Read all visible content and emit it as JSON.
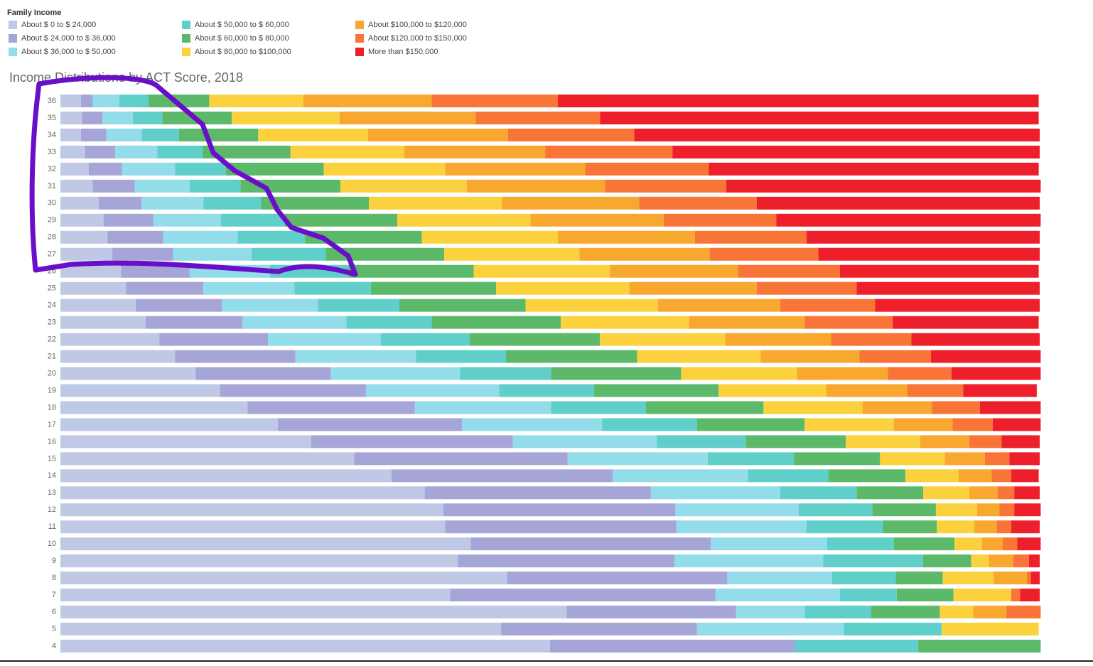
{
  "chart_data": {
    "type": "stacked-bar-horizontal",
    "title": "Income Distributions by ACT Score, 2018",
    "legend_title": "Family Income",
    "xlim": [
      0,
      100
    ],
    "categories": [
      "36",
      "35",
      "34",
      "33",
      "32",
      "31",
      "30",
      "29",
      "28",
      "27",
      "26",
      "25",
      "24",
      "23",
      "22",
      "21",
      "20",
      "19",
      "18",
      "17",
      "16",
      "15",
      "14",
      "13",
      "12",
      "11",
      "10",
      "9",
      "8",
      "7",
      "6",
      "5",
      "4"
    ],
    "series": [
      {
        "name": "About $ 0 to $ 24,000",
        "color": "#bfc9e6",
        "values": [
          2.1,
          2.2,
          2.1,
          2.5,
          2.9,
          3.3,
          3.9,
          4.4,
          4.8,
          5.3,
          6.2,
          6.7,
          7.7,
          8.7,
          10.1,
          11.7,
          13.8,
          16.3,
          19.1,
          22.2,
          25.6,
          30.0,
          33.8,
          37.2,
          39.1,
          39.3,
          41.9,
          40.6,
          45.6,
          39.8,
          51.7,
          45.0,
          50.0
        ]
      },
      {
        "name": "About $ 24,000 to $ 36,000",
        "color": "#a6a5d7",
        "values": [
          1.2,
          2.1,
          2.6,
          3.1,
          3.4,
          4.3,
          4.4,
          5.1,
          5.7,
          6.2,
          7.0,
          7.9,
          8.8,
          9.9,
          11.1,
          12.3,
          13.8,
          14.9,
          17.1,
          18.8,
          20.6,
          21.8,
          22.6,
          23.1,
          23.7,
          23.6,
          24.5,
          22.1,
          22.5,
          27.1,
          17.3,
          20.0,
          25.0
        ]
      },
      {
        "name": "About $ 36,000 to $ 50,000",
        "color": "#93dcea",
        "values": [
          2.7,
          3.1,
          3.6,
          4.3,
          5.4,
          5.6,
          6.3,
          6.9,
          7.6,
          8.0,
          8.2,
          9.3,
          9.8,
          10.6,
          11.5,
          12.3,
          13.2,
          13.6,
          13.9,
          14.3,
          14.7,
          14.3,
          13.8,
          13.2,
          12.6,
          13.3,
          11.9,
          15.2,
          10.7,
          12.7,
          7.0,
          15.0,
          0
        ]
      },
      {
        "name": "About $ 50,000 to $ 60,000",
        "color": "#60cfc9",
        "values": [
          3.0,
          3.0,
          3.8,
          4.6,
          5.2,
          5.2,
          5.9,
          6.5,
          6.9,
          7.6,
          8.0,
          7.8,
          8.3,
          8.7,
          9.1,
          9.2,
          9.3,
          9.7,
          9.7,
          9.7,
          9.1,
          8.8,
          8.2,
          7.8,
          7.5,
          7.8,
          6.8,
          10.2,
          6.5,
          5.8,
          6.8,
          10.0,
          12.6
        ]
      },
      {
        "name": "About $ 60,000 to $ 80,000",
        "color": "#5db96a",
        "values": [
          6.2,
          7.1,
          8.1,
          9.0,
          10.0,
          10.2,
          11.0,
          11.5,
          11.9,
          12.1,
          12.8,
          12.8,
          12.9,
          13.2,
          13.3,
          13.4,
          13.3,
          12.7,
          12.0,
          11.0,
          10.2,
          8.8,
          7.9,
          6.8,
          6.5,
          5.5,
          6.2,
          4.9,
          4.8,
          5.8,
          7.0,
          0,
          12.5
        ]
      },
      {
        "name": "About $ 80,000 to $100,000",
        "color": "#fbd23d",
        "values": [
          9.6,
          11.0,
          11.2,
          11.6,
          12.4,
          12.9,
          13.6,
          13.6,
          13.9,
          13.8,
          13.9,
          13.6,
          13.5,
          13.1,
          12.8,
          12.6,
          11.8,
          11.0,
          10.1,
          9.1,
          7.6,
          6.6,
          5.4,
          4.7,
          4.2,
          3.8,
          2.8,
          1.8,
          5.2,
          5.9,
          3.4,
          9.9,
          0
        ]
      },
      {
        "name": "About $100,000 to $120,000",
        "color": "#f8a82f",
        "values": [
          13.1,
          13.9,
          14.3,
          14.4,
          14.3,
          14.1,
          14.0,
          13.6,
          14.0,
          13.3,
          13.1,
          13.0,
          12.5,
          11.8,
          10.8,
          10.1,
          9.3,
          8.3,
          7.1,
          6.0,
          5.0,
          4.1,
          3.4,
          2.9,
          2.3,
          2.3,
          2.1,
          2.5,
          3.4,
          0,
          3.4,
          0,
          0
        ]
      },
      {
        "name": "About $120,000 to $150,000",
        "color": "#f97437",
        "values": [
          12.9,
          12.7,
          12.9,
          13.0,
          12.6,
          12.4,
          12.0,
          11.5,
          11.4,
          11.1,
          10.4,
          10.2,
          9.7,
          9.0,
          8.2,
          7.3,
          6.5,
          5.7,
          4.9,
          4.1,
          3.3,
          2.5,
          2.0,
          1.7,
          1.5,
          1.5,
          1.5,
          1.6,
          0.4,
          0.9,
          3.5,
          0,
          0
        ]
      },
      {
        "name": "More than $150,000",
        "color": "#ed1f2b",
        "values": [
          49.1,
          44.8,
          41.4,
          37.5,
          33.7,
          32.1,
          28.9,
          27.0,
          23.8,
          22.6,
          20.3,
          18.7,
          16.8,
          14.9,
          13.1,
          11.2,
          9.1,
          7.5,
          6.2,
          4.9,
          3.9,
          3.1,
          2.8,
          2.6,
          2.7,
          2.9,
          2.4,
          1.1,
          0.9,
          2.0,
          0,
          0,
          0
        ]
      }
    ]
  }
}
